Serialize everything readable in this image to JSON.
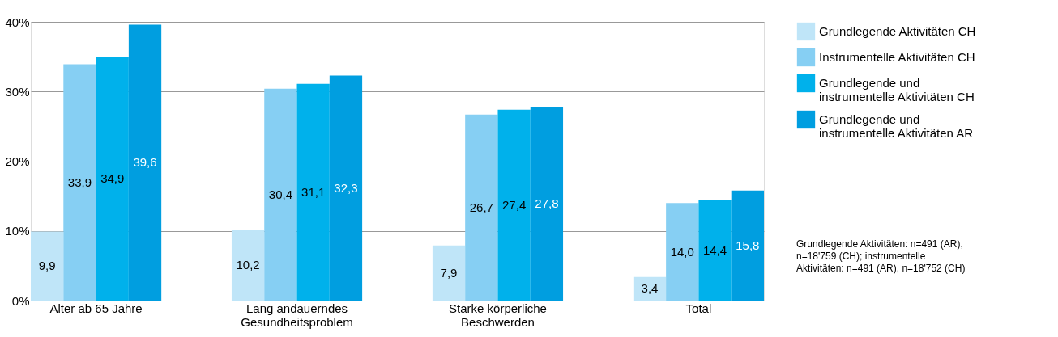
{
  "chart_data": {
    "type": "bar",
    "categories": [
      "Alter ab 65 Jahre",
      "Lang andauerndes Gesundheitsproblem",
      "Starke körperliche Beschwerden",
      "Total"
    ],
    "series": [
      {
        "name": "Grundlegende Aktivitäten CH",
        "color": "#bfe5f8",
        "values": [
          9.9,
          10.2,
          7.9,
          3.4
        ],
        "value_labels": [
          "9,9",
          "10,2",
          "7,9",
          "3,4"
        ]
      },
      {
        "name": "Instrumentelle Aktivitäten CH",
        "color": "#86cff3",
        "values": [
          33.9,
          30.4,
          26.7,
          14.0
        ],
        "value_labels": [
          "33,9",
          "30,4",
          "26,7",
          "14,0"
        ]
      },
      {
        "name": "Grundlegende und instrumentelle Aktivitäten CH",
        "color": "#00b1eb",
        "values": [
          34.9,
          31.1,
          27.4,
          14.4
        ],
        "value_labels": [
          "34,9",
          "31,1",
          "27,4",
          "14,4"
        ]
      },
      {
        "name": "Grundlegende und instrumentelle Aktivitäten AR",
        "color": "#009ee0",
        "values": [
          39.6,
          32.3,
          27.8,
          15.8
        ],
        "value_labels": [
          "39,6",
          "32,3",
          "27,8",
          "15,8"
        ]
      }
    ],
    "ylim": [
      0,
      40
    ],
    "yticks": [
      {
        "value": 0,
        "label": "0%"
      },
      {
        "value": 10,
        "label": "10%"
      },
      {
        "value": 20,
        "label": "20%"
      },
      {
        "value": 30,
        "label": "30%"
      },
      {
        "value": 40,
        "label": "40%"
      }
    ],
    "grid": "y",
    "legend": "top right",
    "annotations": [
      "Grundlegende Aktivitäten: n=491 (AR), n=18'759 (CH); instrumentelle Aktivitäten: n=491 (AR), n=18'752 (CH)"
    ]
  }
}
